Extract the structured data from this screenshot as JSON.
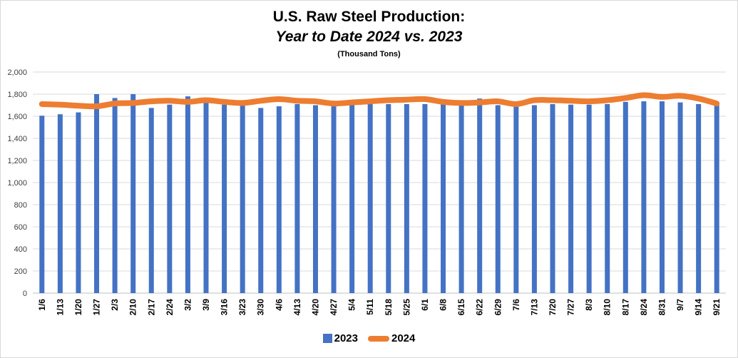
{
  "chart_data": {
    "type": "bar+line",
    "title": "U.S. Raw Steel Production:",
    "subtitle": "Year to Date 2024 vs. 2023",
    "units": "(Thousand Tons)",
    "categories": [
      "1/6",
      "1/13",
      "1/20",
      "1/27",
      "2/3",
      "2/10",
      "2/17",
      "2/24",
      "3/2",
      "3/9",
      "3/16",
      "3/23",
      "3/30",
      "4/6",
      "4/13",
      "4/20",
      "4/27",
      "5/4",
      "5/11",
      "5/18",
      "5/25",
      "6/1",
      "6/8",
      "6/15",
      "6/22",
      "6/29",
      "7/6",
      "7/13",
      "7/20",
      "7/27",
      "8/3",
      "8/10",
      "8/17",
      "8/24",
      "8/31",
      "9/7",
      "9/14",
      "9/21"
    ],
    "ylim": [
      0,
      2000
    ],
    "yticks": [
      0,
      200,
      400,
      600,
      800,
      1000,
      1200,
      1400,
      1600,
      1800,
      2000
    ],
    "ytick_labels": [
      "0",
      "200",
      "400",
      "600",
      "800",
      "1,000",
      "1,200",
      "1,400",
      "1,600",
      "1,800",
      "2,000"
    ],
    "grid": true,
    "legend_position": "bottom",
    "series": [
      {
        "name": "2023",
        "kind": "bar",
        "color": "#4472C4",
        "values": [
          1605,
          1618,
          1635,
          1800,
          1765,
          1800,
          1675,
          1705,
          1780,
          1720,
          1705,
          1700,
          1675,
          1690,
          1710,
          1700,
          1690,
          1710,
          1710,
          1710,
          1710,
          1710,
          1710,
          1745,
          1760,
          1700,
          1695,
          1700,
          1710,
          1705,
          1705,
          1710,
          1730,
          1735,
          1735,
          1725,
          1710,
          1705
        ]
      },
      {
        "name": "2024",
        "kind": "line",
        "color": "#ED7D31",
        "values": [
          1710,
          1705,
          1695,
          1690,
          1715,
          1720,
          1735,
          1740,
          1730,
          1745,
          1730,
          1720,
          1740,
          1755,
          1740,
          1735,
          1715,
          1725,
          1735,
          1745,
          1750,
          1755,
          1730,
          1720,
          1725,
          1735,
          1710,
          1745,
          1745,
          1740,
          1735,
          1745,
          1765,
          1790,
          1775,
          1785,
          1760,
          1715
        ]
      }
    ]
  }
}
